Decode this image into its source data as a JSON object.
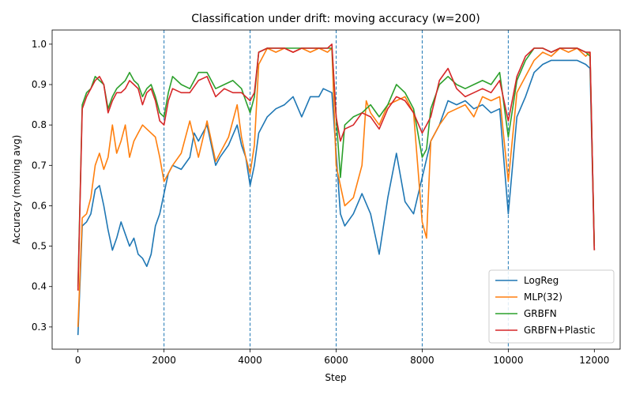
{
  "chart_data": {
    "type": "line",
    "title": "Classification under drift: moving accuracy (w=200)",
    "xlabel": "Step",
    "ylabel": "Accuracy (moving avg)",
    "xlim": [
      -600,
      12600
    ],
    "ylim": [
      0.245,
      1.035
    ],
    "xticks": [
      0,
      2000,
      4000,
      6000,
      8000,
      10000,
      12000
    ],
    "yticks": [
      0.3,
      0.4,
      0.5,
      0.6,
      0.7,
      0.8,
      0.9,
      1.0
    ],
    "grid": false,
    "legend_position": "bottom-right",
    "drift_lines": [
      2000,
      4000,
      6000,
      8000,
      10000
    ],
    "drift_line_color": "#1f77b4",
    "series": [
      {
        "name": "LogReg",
        "color": "#1f77b4",
        "points": [
          [
            0,
            0.28
          ],
          [
            100,
            0.55
          ],
          [
            200,
            0.56
          ],
          [
            300,
            0.58
          ],
          [
            400,
            0.64
          ],
          [
            500,
            0.65
          ],
          [
            600,
            0.6
          ],
          [
            700,
            0.54
          ],
          [
            800,
            0.49
          ],
          [
            900,
            0.52
          ],
          [
            1000,
            0.56
          ],
          [
            1100,
            0.53
          ],
          [
            1200,
            0.5
          ],
          [
            1300,
            0.52
          ],
          [
            1400,
            0.48
          ],
          [
            1500,
            0.47
          ],
          [
            1600,
            0.45
          ],
          [
            1700,
            0.48
          ],
          [
            1800,
            0.55
          ],
          [
            1900,
            0.58
          ],
          [
            2000,
            0.63
          ],
          [
            2100,
            0.68
          ],
          [
            2200,
            0.7
          ],
          [
            2400,
            0.69
          ],
          [
            2600,
            0.72
          ],
          [
            2700,
            0.78
          ],
          [
            2800,
            0.76
          ],
          [
            3000,
            0.8
          ],
          [
            3200,
            0.7
          ],
          [
            3300,
            0.72
          ],
          [
            3500,
            0.75
          ],
          [
            3700,
            0.8
          ],
          [
            3800,
            0.75
          ],
          [
            3900,
            0.72
          ],
          [
            4000,
            0.65
          ],
          [
            4100,
            0.7
          ],
          [
            4200,
            0.78
          ],
          [
            4400,
            0.82
          ],
          [
            4600,
            0.84
          ],
          [
            4800,
            0.85
          ],
          [
            5000,
            0.87
          ],
          [
            5200,
            0.82
          ],
          [
            5400,
            0.87
          ],
          [
            5600,
            0.87
          ],
          [
            5700,
            0.89
          ],
          [
            5900,
            0.88
          ],
          [
            6000,
            0.73
          ],
          [
            6100,
            0.58
          ],
          [
            6200,
            0.55
          ],
          [
            6400,
            0.58
          ],
          [
            6600,
            0.63
          ],
          [
            6800,
            0.58
          ],
          [
            7000,
            0.48
          ],
          [
            7200,
            0.62
          ],
          [
            7400,
            0.73
          ],
          [
            7600,
            0.61
          ],
          [
            7800,
            0.58
          ],
          [
            8000,
            0.67
          ],
          [
            8200,
            0.76
          ],
          [
            8400,
            0.8
          ],
          [
            8600,
            0.86
          ],
          [
            8800,
            0.85
          ],
          [
            9000,
            0.86
          ],
          [
            9200,
            0.84
          ],
          [
            9400,
            0.85
          ],
          [
            9600,
            0.83
          ],
          [
            9800,
            0.84
          ],
          [
            10000,
            0.58
          ],
          [
            10200,
            0.82
          ],
          [
            10400,
            0.87
          ],
          [
            10600,
            0.93
          ],
          [
            10800,
            0.95
          ],
          [
            11000,
            0.96
          ],
          [
            11200,
            0.96
          ],
          [
            11400,
            0.96
          ],
          [
            11600,
            0.96
          ],
          [
            11800,
            0.95
          ],
          [
            11900,
            0.94
          ],
          [
            12000,
            0.49
          ]
        ]
      },
      {
        "name": "MLP(32)",
        "color": "#ff7f0e",
        "points": [
          [
            0,
            0.3
          ],
          [
            100,
            0.57
          ],
          [
            200,
            0.58
          ],
          [
            300,
            0.62
          ],
          [
            400,
            0.7
          ],
          [
            500,
            0.73
          ],
          [
            600,
            0.69
          ],
          [
            700,
            0.72
          ],
          [
            800,
            0.8
          ],
          [
            900,
            0.73
          ],
          [
            1000,
            0.76
          ],
          [
            1100,
            0.8
          ],
          [
            1200,
            0.72
          ],
          [
            1300,
            0.76
          ],
          [
            1400,
            0.78
          ],
          [
            1500,
            0.8
          ],
          [
            1600,
            0.79
          ],
          [
            1700,
            0.78
          ],
          [
            1800,
            0.77
          ],
          [
            1900,
            0.72
          ],
          [
            2000,
            0.66
          ],
          [
            2100,
            0.68
          ],
          [
            2200,
            0.7
          ],
          [
            2400,
            0.73
          ],
          [
            2600,
            0.81
          ],
          [
            2800,
            0.72
          ],
          [
            3000,
            0.81
          ],
          [
            3200,
            0.71
          ],
          [
            3300,
            0.73
          ],
          [
            3500,
            0.77
          ],
          [
            3700,
            0.85
          ],
          [
            3800,
            0.77
          ],
          [
            3900,
            0.72
          ],
          [
            4000,
            0.68
          ],
          [
            4100,
            0.75
          ],
          [
            4200,
            0.95
          ],
          [
            4400,
            0.99
          ],
          [
            4600,
            0.98
          ],
          [
            4800,
            0.99
          ],
          [
            5000,
            0.98
          ],
          [
            5200,
            0.99
          ],
          [
            5400,
            0.98
          ],
          [
            5600,
            0.99
          ],
          [
            5800,
            0.98
          ],
          [
            5900,
            0.99
          ],
          [
            6000,
            0.7
          ],
          [
            6100,
            0.65
          ],
          [
            6200,
            0.6
          ],
          [
            6400,
            0.62
          ],
          [
            6600,
            0.7
          ],
          [
            6700,
            0.86
          ],
          [
            6800,
            0.83
          ],
          [
            7000,
            0.8
          ],
          [
            7200,
            0.85
          ],
          [
            7400,
            0.86
          ],
          [
            7600,
            0.87
          ],
          [
            7800,
            0.83
          ],
          [
            8000,
            0.56
          ],
          [
            8100,
            0.52
          ],
          [
            8200,
            0.76
          ],
          [
            8400,
            0.8
          ],
          [
            8600,
            0.83
          ],
          [
            8800,
            0.84
          ],
          [
            9000,
            0.85
          ],
          [
            9200,
            0.82
          ],
          [
            9400,
            0.87
          ],
          [
            9600,
            0.86
          ],
          [
            9800,
            0.87
          ],
          [
            10000,
            0.66
          ],
          [
            10200,
            0.88
          ],
          [
            10400,
            0.92
          ],
          [
            10600,
            0.96
          ],
          [
            10800,
            0.98
          ],
          [
            11000,
            0.97
          ],
          [
            11200,
            0.99
          ],
          [
            11400,
            0.98
          ],
          [
            11600,
            0.99
          ],
          [
            11800,
            0.97
          ],
          [
            11900,
            0.98
          ],
          [
            12000,
            0.49
          ]
        ]
      },
      {
        "name": "GRBFN",
        "color": "#2ca02c",
        "points": [
          [
            0,
            0.4
          ],
          [
            100,
            0.85
          ],
          [
            200,
            0.88
          ],
          [
            300,
            0.89
          ],
          [
            400,
            0.92
          ],
          [
            500,
            0.91
          ],
          [
            600,
            0.9
          ],
          [
            700,
            0.84
          ],
          [
            800,
            0.87
          ],
          [
            900,
            0.89
          ],
          [
            1000,
            0.9
          ],
          [
            1100,
            0.91
          ],
          [
            1200,
            0.93
          ],
          [
            1300,
            0.91
          ],
          [
            1400,
            0.9
          ],
          [
            1500,
            0.87
          ],
          [
            1600,
            0.89
          ],
          [
            1700,
            0.9
          ],
          [
            1800,
            0.87
          ],
          [
            1900,
            0.83
          ],
          [
            2000,
            0.82
          ],
          [
            2100,
            0.88
          ],
          [
            2200,
            0.92
          ],
          [
            2400,
            0.9
          ],
          [
            2600,
            0.89
          ],
          [
            2800,
            0.93
          ],
          [
            3000,
            0.93
          ],
          [
            3200,
            0.89
          ],
          [
            3400,
            0.9
          ],
          [
            3600,
            0.91
          ],
          [
            3800,
            0.89
          ],
          [
            3900,
            0.86
          ],
          [
            4000,
            0.83
          ],
          [
            4100,
            0.87
          ],
          [
            4200,
            0.98
          ],
          [
            4400,
            0.99
          ],
          [
            4600,
            0.99
          ],
          [
            4800,
            0.99
          ],
          [
            5000,
            0.99
          ],
          [
            5200,
            0.99
          ],
          [
            5400,
            0.99
          ],
          [
            5600,
            0.99
          ],
          [
            5800,
            0.99
          ],
          [
            5900,
            0.99
          ],
          [
            6000,
            0.82
          ],
          [
            6100,
            0.67
          ],
          [
            6200,
            0.8
          ],
          [
            6400,
            0.82
          ],
          [
            6600,
            0.83
          ],
          [
            6800,
            0.85
          ],
          [
            7000,
            0.82
          ],
          [
            7200,
            0.85
          ],
          [
            7400,
            0.9
          ],
          [
            7600,
            0.88
          ],
          [
            7800,
            0.84
          ],
          [
            8000,
            0.72
          ],
          [
            8100,
            0.74
          ],
          [
            8200,
            0.84
          ],
          [
            8400,
            0.9
          ],
          [
            8600,
            0.92
          ],
          [
            8800,
            0.9
          ],
          [
            9000,
            0.89
          ],
          [
            9200,
            0.9
          ],
          [
            9400,
            0.91
          ],
          [
            9600,
            0.9
          ],
          [
            9800,
            0.93
          ],
          [
            10000,
            0.77
          ],
          [
            10200,
            0.91
          ],
          [
            10400,
            0.96
          ],
          [
            10600,
            0.99
          ],
          [
            10800,
            0.99
          ],
          [
            11000,
            0.98
          ],
          [
            11200,
            0.99
          ],
          [
            11400,
            0.99
          ],
          [
            11600,
            0.99
          ],
          [
            11800,
            0.98
          ],
          [
            11900,
            0.97
          ],
          [
            12000,
            0.5
          ]
        ]
      },
      {
        "name": "GRBFN+Plastic",
        "color": "#d62728",
        "points": [
          [
            0,
            0.39
          ],
          [
            100,
            0.84
          ],
          [
            200,
            0.87
          ],
          [
            300,
            0.89
          ],
          [
            400,
            0.91
          ],
          [
            500,
            0.92
          ],
          [
            600,
            0.9
          ],
          [
            700,
            0.83
          ],
          [
            800,
            0.86
          ],
          [
            900,
            0.88
          ],
          [
            1000,
            0.88
          ],
          [
            1100,
            0.89
          ],
          [
            1200,
            0.91
          ],
          [
            1300,
            0.9
          ],
          [
            1400,
            0.89
          ],
          [
            1500,
            0.85
          ],
          [
            1600,
            0.88
          ],
          [
            1700,
            0.89
          ],
          [
            1800,
            0.86
          ],
          [
            1900,
            0.81
          ],
          [
            2000,
            0.8
          ],
          [
            2100,
            0.86
          ],
          [
            2200,
            0.89
          ],
          [
            2400,
            0.88
          ],
          [
            2600,
            0.88
          ],
          [
            2800,
            0.91
          ],
          [
            3000,
            0.92
          ],
          [
            3200,
            0.87
          ],
          [
            3400,
            0.89
          ],
          [
            3600,
            0.88
          ],
          [
            3800,
            0.88
          ],
          [
            3900,
            0.87
          ],
          [
            4000,
            0.86
          ],
          [
            4100,
            0.88
          ],
          [
            4200,
            0.98
          ],
          [
            4400,
            0.99
          ],
          [
            4600,
            0.99
          ],
          [
            4800,
            0.99
          ],
          [
            5000,
            0.98
          ],
          [
            5200,
            0.99
          ],
          [
            5400,
            0.99
          ],
          [
            5600,
            0.99
          ],
          [
            5800,
            0.99
          ],
          [
            5900,
            1.0
          ],
          [
            6000,
            0.82
          ],
          [
            6100,
            0.76
          ],
          [
            6200,
            0.79
          ],
          [
            6400,
            0.8
          ],
          [
            6600,
            0.83
          ],
          [
            6800,
            0.82
          ],
          [
            7000,
            0.79
          ],
          [
            7200,
            0.84
          ],
          [
            7400,
            0.87
          ],
          [
            7600,
            0.86
          ],
          [
            7800,
            0.83
          ],
          [
            8000,
            0.78
          ],
          [
            8100,
            0.8
          ],
          [
            8200,
            0.82
          ],
          [
            8400,
            0.91
          ],
          [
            8600,
            0.94
          ],
          [
            8800,
            0.89
          ],
          [
            9000,
            0.87
          ],
          [
            9200,
            0.88
          ],
          [
            9400,
            0.89
          ],
          [
            9600,
            0.88
          ],
          [
            9800,
            0.91
          ],
          [
            10000,
            0.81
          ],
          [
            10200,
            0.92
          ],
          [
            10400,
            0.97
          ],
          [
            10600,
            0.99
          ],
          [
            10800,
            0.99
          ],
          [
            11000,
            0.98
          ],
          [
            11200,
            0.99
          ],
          [
            11400,
            0.99
          ],
          [
            11600,
            0.99
          ],
          [
            11800,
            0.98
          ],
          [
            11900,
            0.98
          ],
          [
            12000,
            0.49
          ]
        ]
      }
    ]
  }
}
